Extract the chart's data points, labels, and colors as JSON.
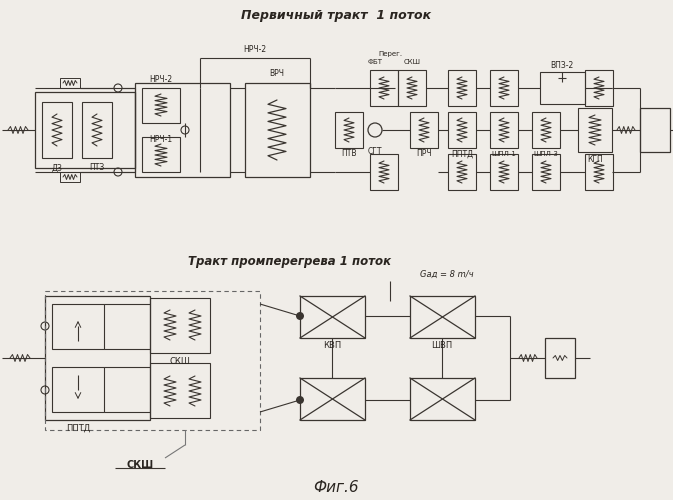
{
  "bg_color": "#f0ede8",
  "line_color": "#3a3530",
  "text_color": "#2a2520",
  "title1": "Первичный тракт  1 поток",
  "title2": "Тракт промперегрева 1 поток",
  "fig_label": "Фиг.6",
  "label_nrch2_top": "НРЧ-2",
  "label_vrch": "ВРЧ",
  "label_perez": "Перег.",
  "label_fbt": "ФБТ",
  "label_sksh_top": "СКШ",
  "label_vpz2": "ВПЗ-2",
  "label_dz": "ДЗ",
  "label_ptz": "ПТЗ",
  "label_nrch1": "НРЧ-1",
  "label_ptv": "ПТВ",
  "label_sgt": "СГТ",
  "label_prch": "ПРЧ",
  "label_pptd": "ППТД",
  "label_shpl1": "ШПЛ-1",
  "label_shpl3": "ШПЛ-3",
  "label_kgp": "КГП",
  "label_pptd2": "ППТД",
  "label_sksh2": "СКШ",
  "label_kvp": "КВП",
  "label_shvp": "ШВП",
  "label_gad": "Gад = 8 m/ч",
  "label_sksh_ann": "СКШ"
}
